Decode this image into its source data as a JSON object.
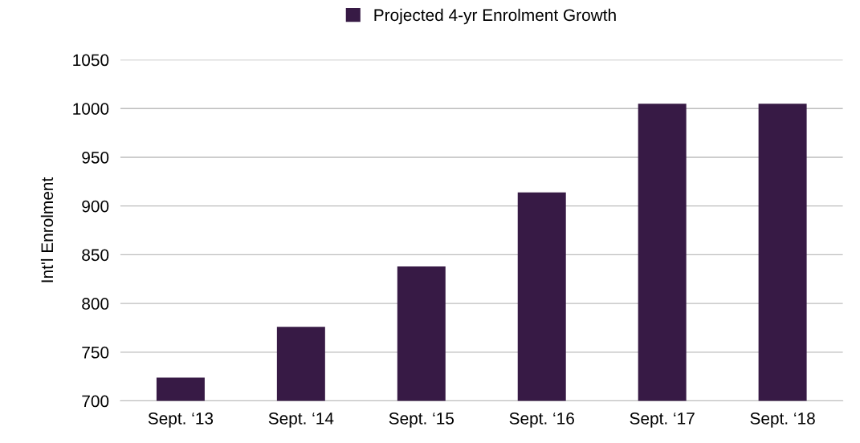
{
  "chart_data": {
    "type": "bar",
    "ylabel": "Int'l Enrolment",
    "categories": [
      "Sept. ‘13",
      "Sept. ‘14",
      "Sept. ‘15",
      "Sept. ‘16",
      "Sept. ‘17",
      "Sept. ‘18"
    ],
    "series": [
      {
        "name": "Projected 4-yr Enrolment Growth",
        "color": "#371a45",
        "values": [
          724,
          776,
          838,
          914,
          1005,
          1005
        ]
      }
    ],
    "ylim": [
      700,
      1050
    ],
    "yticks": [
      700,
      750,
      800,
      850,
      900,
      950,
      1000,
      1050
    ],
    "grid": "y",
    "legend": "top"
  }
}
